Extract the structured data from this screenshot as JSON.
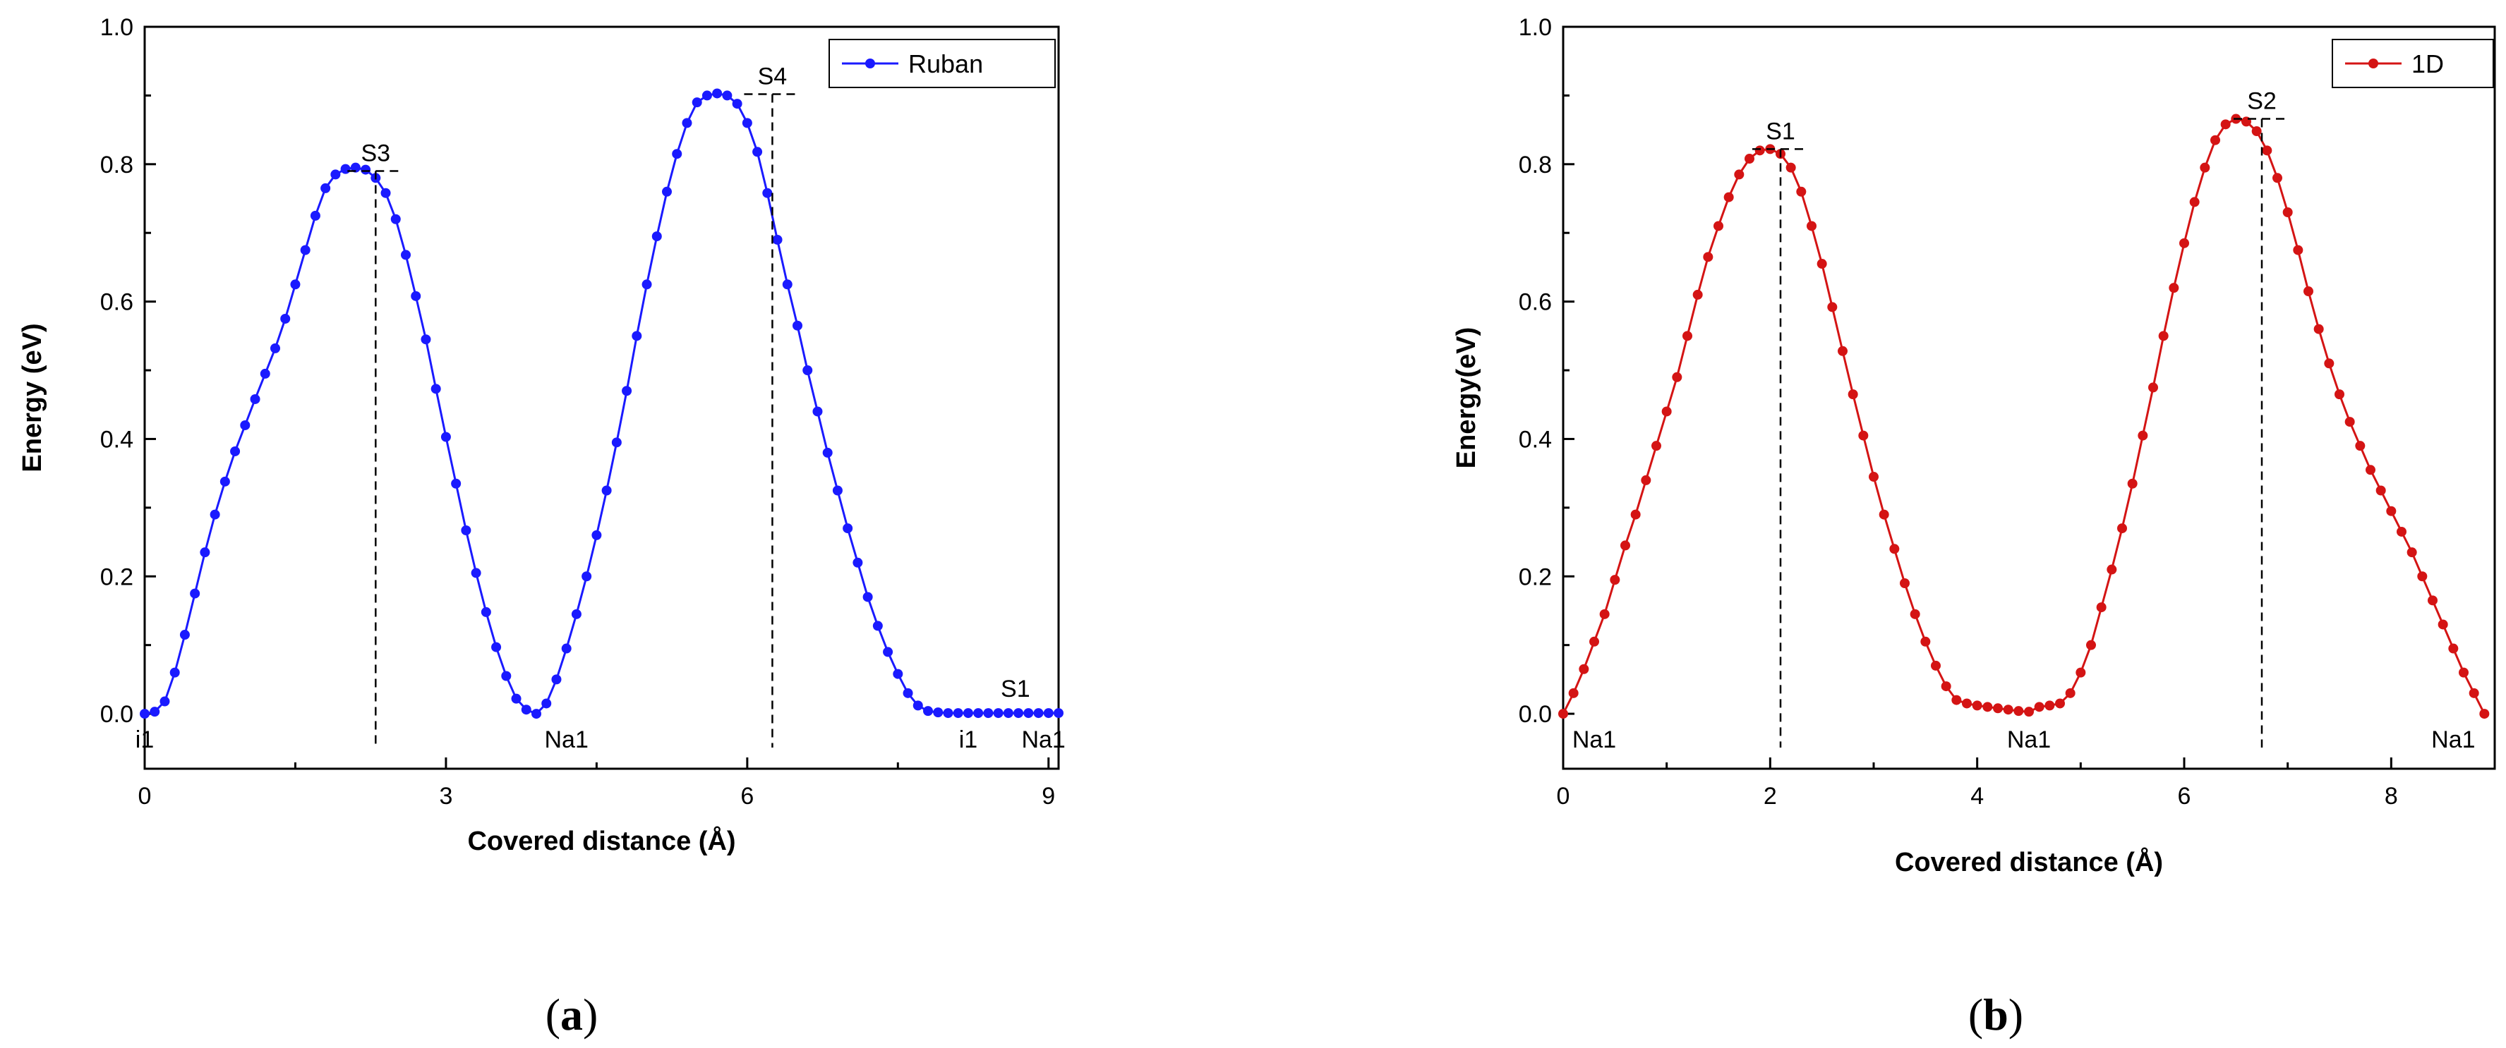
{
  "chart_data": [
    {
      "type": "line",
      "caption_letter": "a",
      "xlabel": "Covered distance (Å)",
      "ylabel": "Energy (eV)",
      "xlim": [
        0,
        9.1
      ],
      "ylim": [
        -0.08,
        1.0
      ],
      "xticks": [
        0,
        3,
        6,
        9
      ],
      "yticks": [
        0.0,
        0.2,
        0.4,
        0.6,
        0.8,
        1.0
      ],
      "ytick_labels": [
        "0.0",
        "0.2",
        "0.4",
        "0.6",
        "0.8",
        "1.0"
      ],
      "grid": false,
      "legend_position": "top-right",
      "series": [
        {
          "name": "Ruban",
          "color": "#1a1aff",
          "x": [
            0.0,
            0.1,
            0.2,
            0.3,
            0.4,
            0.5,
            0.6,
            0.7,
            0.8,
            0.9,
            1.0,
            1.1,
            1.2,
            1.3,
            1.4,
            1.5,
            1.6,
            1.7,
            1.8,
            1.9,
            2.0,
            2.1,
            2.2,
            2.3,
            2.4,
            2.5,
            2.6,
            2.7,
            2.8,
            2.9,
            3.0,
            3.1,
            3.2,
            3.3,
            3.4,
            3.5,
            3.6,
            3.7,
            3.8,
            3.9,
            4.0,
            4.1,
            4.2,
            4.3,
            4.4,
            4.5,
            4.6,
            4.7,
            4.8,
            4.9,
            5.0,
            5.1,
            5.2,
            5.3,
            5.4,
            5.5,
            5.6,
            5.7,
            5.8,
            5.9,
            6.0,
            6.1,
            6.2,
            6.3,
            6.4,
            6.5,
            6.6,
            6.7,
            6.8,
            6.9,
            7.0,
            7.1,
            7.2,
            7.3,
            7.4,
            7.5,
            7.6,
            7.7,
            7.8,
            7.9,
            8.0,
            8.1,
            8.2,
            8.3,
            8.4,
            8.5,
            8.6,
            8.7,
            8.8,
            8.9,
            9.0,
            9.1
          ],
          "y": [
            0.0,
            0.003,
            0.018,
            0.06,
            0.115,
            0.175,
            0.235,
            0.29,
            0.338,
            0.382,
            0.42,
            0.458,
            0.495,
            0.532,
            0.575,
            0.625,
            0.675,
            0.725,
            0.765,
            0.785,
            0.793,
            0.795,
            0.792,
            0.78,
            0.758,
            0.72,
            0.668,
            0.608,
            0.545,
            0.473,
            0.403,
            0.335,
            0.267,
            0.205,
            0.148,
            0.097,
            0.055,
            0.022,
            0.006,
            0.0,
            0.015,
            0.05,
            0.095,
            0.145,
            0.2,
            0.26,
            0.325,
            0.395,
            0.47,
            0.55,
            0.625,
            0.695,
            0.76,
            0.815,
            0.86,
            0.89,
            0.9,
            0.903,
            0.9,
            0.888,
            0.86,
            0.818,
            0.758,
            0.69,
            0.625,
            0.565,
            0.5,
            0.44,
            0.38,
            0.325,
            0.27,
            0.22,
            0.17,
            0.128,
            0.09,
            0.058,
            0.03,
            0.012,
            0.004,
            0.002,
            0.001,
            0.001,
            0.001,
            0.001,
            0.001,
            0.001,
            0.001,
            0.001,
            0.001,
            0.001,
            0.001,
            0.001
          ]
        }
      ],
      "annotations": [
        {
          "text": "S3",
          "x": 2.3,
          "y": 0.79,
          "peak": true
        },
        {
          "text": "S4",
          "x": 6.25,
          "y": 0.902,
          "peak": true
        },
        {
          "text": "S1",
          "x": 8.6,
          "y": 0.0,
          "peak": false
        },
        {
          "text": "i1",
          "x": 0.0,
          "y": 0.0,
          "peak": false,
          "below": true
        },
        {
          "text": "Na1",
          "x": 4.2,
          "y": 0.0,
          "peak": false,
          "below": true
        },
        {
          "text": "i1",
          "x": 8.2,
          "y": 0.0,
          "peak": false,
          "below": true
        },
        {
          "text": "Na1",
          "x": 8.95,
          "y": 0.0,
          "peak": false,
          "below": true
        }
      ]
    },
    {
      "type": "line",
      "caption_letter": "b",
      "xlabel": "Covered distance (Å)",
      "ylabel": "Energy(eV)",
      "xlim": [
        0,
        9.0
      ],
      "ylim": [
        -0.08,
        1.0
      ],
      "xticks": [
        0,
        2,
        4,
        6,
        8
      ],
      "yticks": [
        0.0,
        0.2,
        0.4,
        0.6,
        0.8,
        1.0
      ],
      "ytick_labels": [
        "0.0",
        "0.2",
        "0.4",
        "0.6",
        "0.8",
        "1.0"
      ],
      "grid": false,
      "legend_position": "top-right",
      "series": [
        {
          "name": "1D",
          "color": "#d41414",
          "x": [
            0.0,
            0.1,
            0.2,
            0.3,
            0.4,
            0.5,
            0.6,
            0.7,
            0.8,
            0.9,
            1.0,
            1.1,
            1.2,
            1.3,
            1.4,
            1.5,
            1.6,
            1.7,
            1.8,
            1.9,
            2.0,
            2.1,
            2.2,
            2.3,
            2.4,
            2.5,
            2.6,
            2.7,
            2.8,
            2.9,
            3.0,
            3.1,
            3.2,
            3.3,
            3.4,
            3.5,
            3.6,
            3.7,
            3.8,
            3.9,
            4.0,
            4.1,
            4.2,
            4.3,
            4.4,
            4.5,
            4.6,
            4.7,
            4.8,
            4.9,
            5.0,
            5.1,
            5.2,
            5.3,
            5.4,
            5.5,
            5.6,
            5.7,
            5.8,
            5.9,
            6.0,
            6.1,
            6.2,
            6.3,
            6.4,
            6.5,
            6.6,
            6.7,
            6.8,
            6.9,
            7.0,
            7.1,
            7.2,
            7.3,
            7.4,
            7.5,
            7.6,
            7.7,
            7.8,
            7.9,
            8.0,
            8.1,
            8.2,
            8.3,
            8.4,
            8.5,
            8.6,
            8.7,
            8.8,
            8.9
          ],
          "y": [
            0.0,
            0.03,
            0.065,
            0.105,
            0.145,
            0.195,
            0.245,
            0.29,
            0.34,
            0.39,
            0.44,
            0.49,
            0.55,
            0.61,
            0.665,
            0.71,
            0.752,
            0.785,
            0.808,
            0.82,
            0.822,
            0.815,
            0.795,
            0.76,
            0.71,
            0.655,
            0.592,
            0.528,
            0.465,
            0.405,
            0.345,
            0.29,
            0.24,
            0.19,
            0.145,
            0.105,
            0.07,
            0.04,
            0.02,
            0.015,
            0.012,
            0.01,
            0.008,
            0.006,
            0.004,
            0.003,
            0.01,
            0.012,
            0.015,
            0.03,
            0.06,
            0.1,
            0.155,
            0.21,
            0.27,
            0.335,
            0.405,
            0.475,
            0.55,
            0.62,
            0.685,
            0.745,
            0.795,
            0.835,
            0.858,
            0.866,
            0.862,
            0.848,
            0.82,
            0.78,
            0.73,
            0.675,
            0.615,
            0.56,
            0.51,
            0.465,
            0.425,
            0.39,
            0.355,
            0.325,
            0.295,
            0.265,
            0.235,
            0.2,
            0.165,
            0.13,
            0.095,
            0.06,
            0.03,
            0.0
          ]
        }
      ],
      "annotations": [
        {
          "text": "S1",
          "x": 2.1,
          "y": 0.822,
          "peak": true
        },
        {
          "text": "S2",
          "x": 6.75,
          "y": 0.866,
          "peak": true
        },
        {
          "text": "Na1",
          "x": 0.3,
          "y": 0.0,
          "peak": false,
          "below": true
        },
        {
          "text": "Na1",
          "x": 4.5,
          "y": 0.0,
          "peak": false,
          "below": true
        },
        {
          "text": "Na1",
          "x": 8.6,
          "y": 0.0,
          "peak": false,
          "below": true
        }
      ]
    }
  ]
}
